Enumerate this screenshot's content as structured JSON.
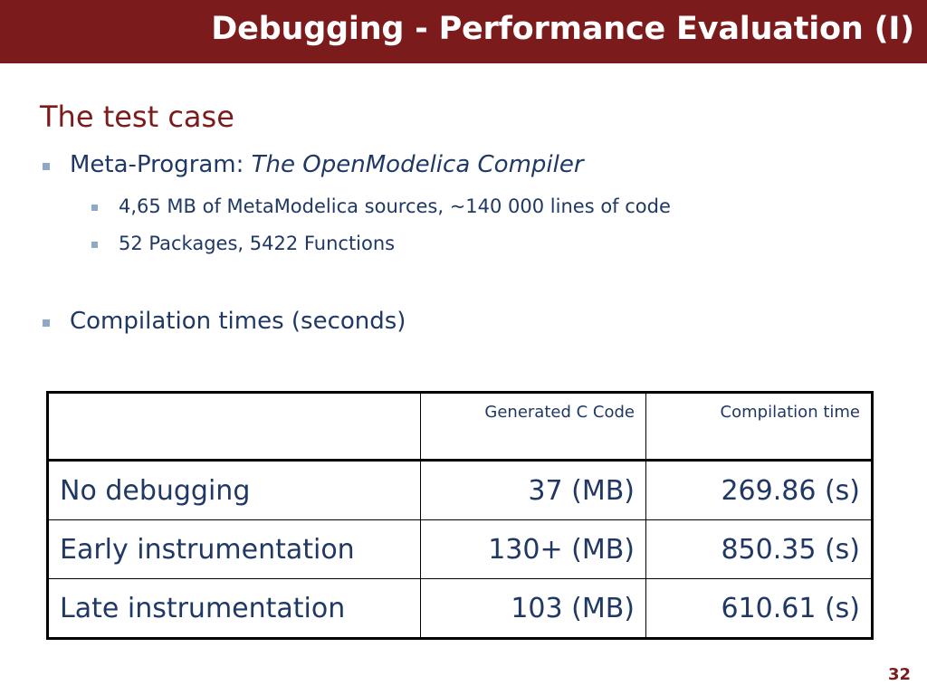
{
  "slide": {
    "title": "Debugging - Performance Evaluation (I)",
    "page_number": "32"
  },
  "content": {
    "heading": "The test case",
    "bullets": [
      {
        "text": "Meta-Program: ",
        "emphasis": "The OpenModelica Compiler"
      },
      {
        "text": "4,65 MB of MetaModelica sources, ~140 000 lines of code"
      },
      {
        "text": "52 Packages, 5422 Functions"
      },
      {
        "text": "Compilation times (seconds)"
      }
    ]
  },
  "table": {
    "headers": [
      "",
      "Generated C Code",
      "Compilation time"
    ],
    "rows": [
      [
        "No debugging",
        "37 (MB)",
        "269.86 (s)"
      ],
      [
        "Early instrumentation",
        "130+ (MB)",
        "850.35 (s)"
      ],
      [
        "Late instrumentation",
        "103 (MB)",
        "610.61 (s)"
      ]
    ]
  },
  "colors": {
    "title_bar": "#7b1b1b",
    "title_text": "#ffffff",
    "heading": "#7b1b1b",
    "body_text": "#1f3864",
    "bullet_marker": "#8ea9c8"
  }
}
